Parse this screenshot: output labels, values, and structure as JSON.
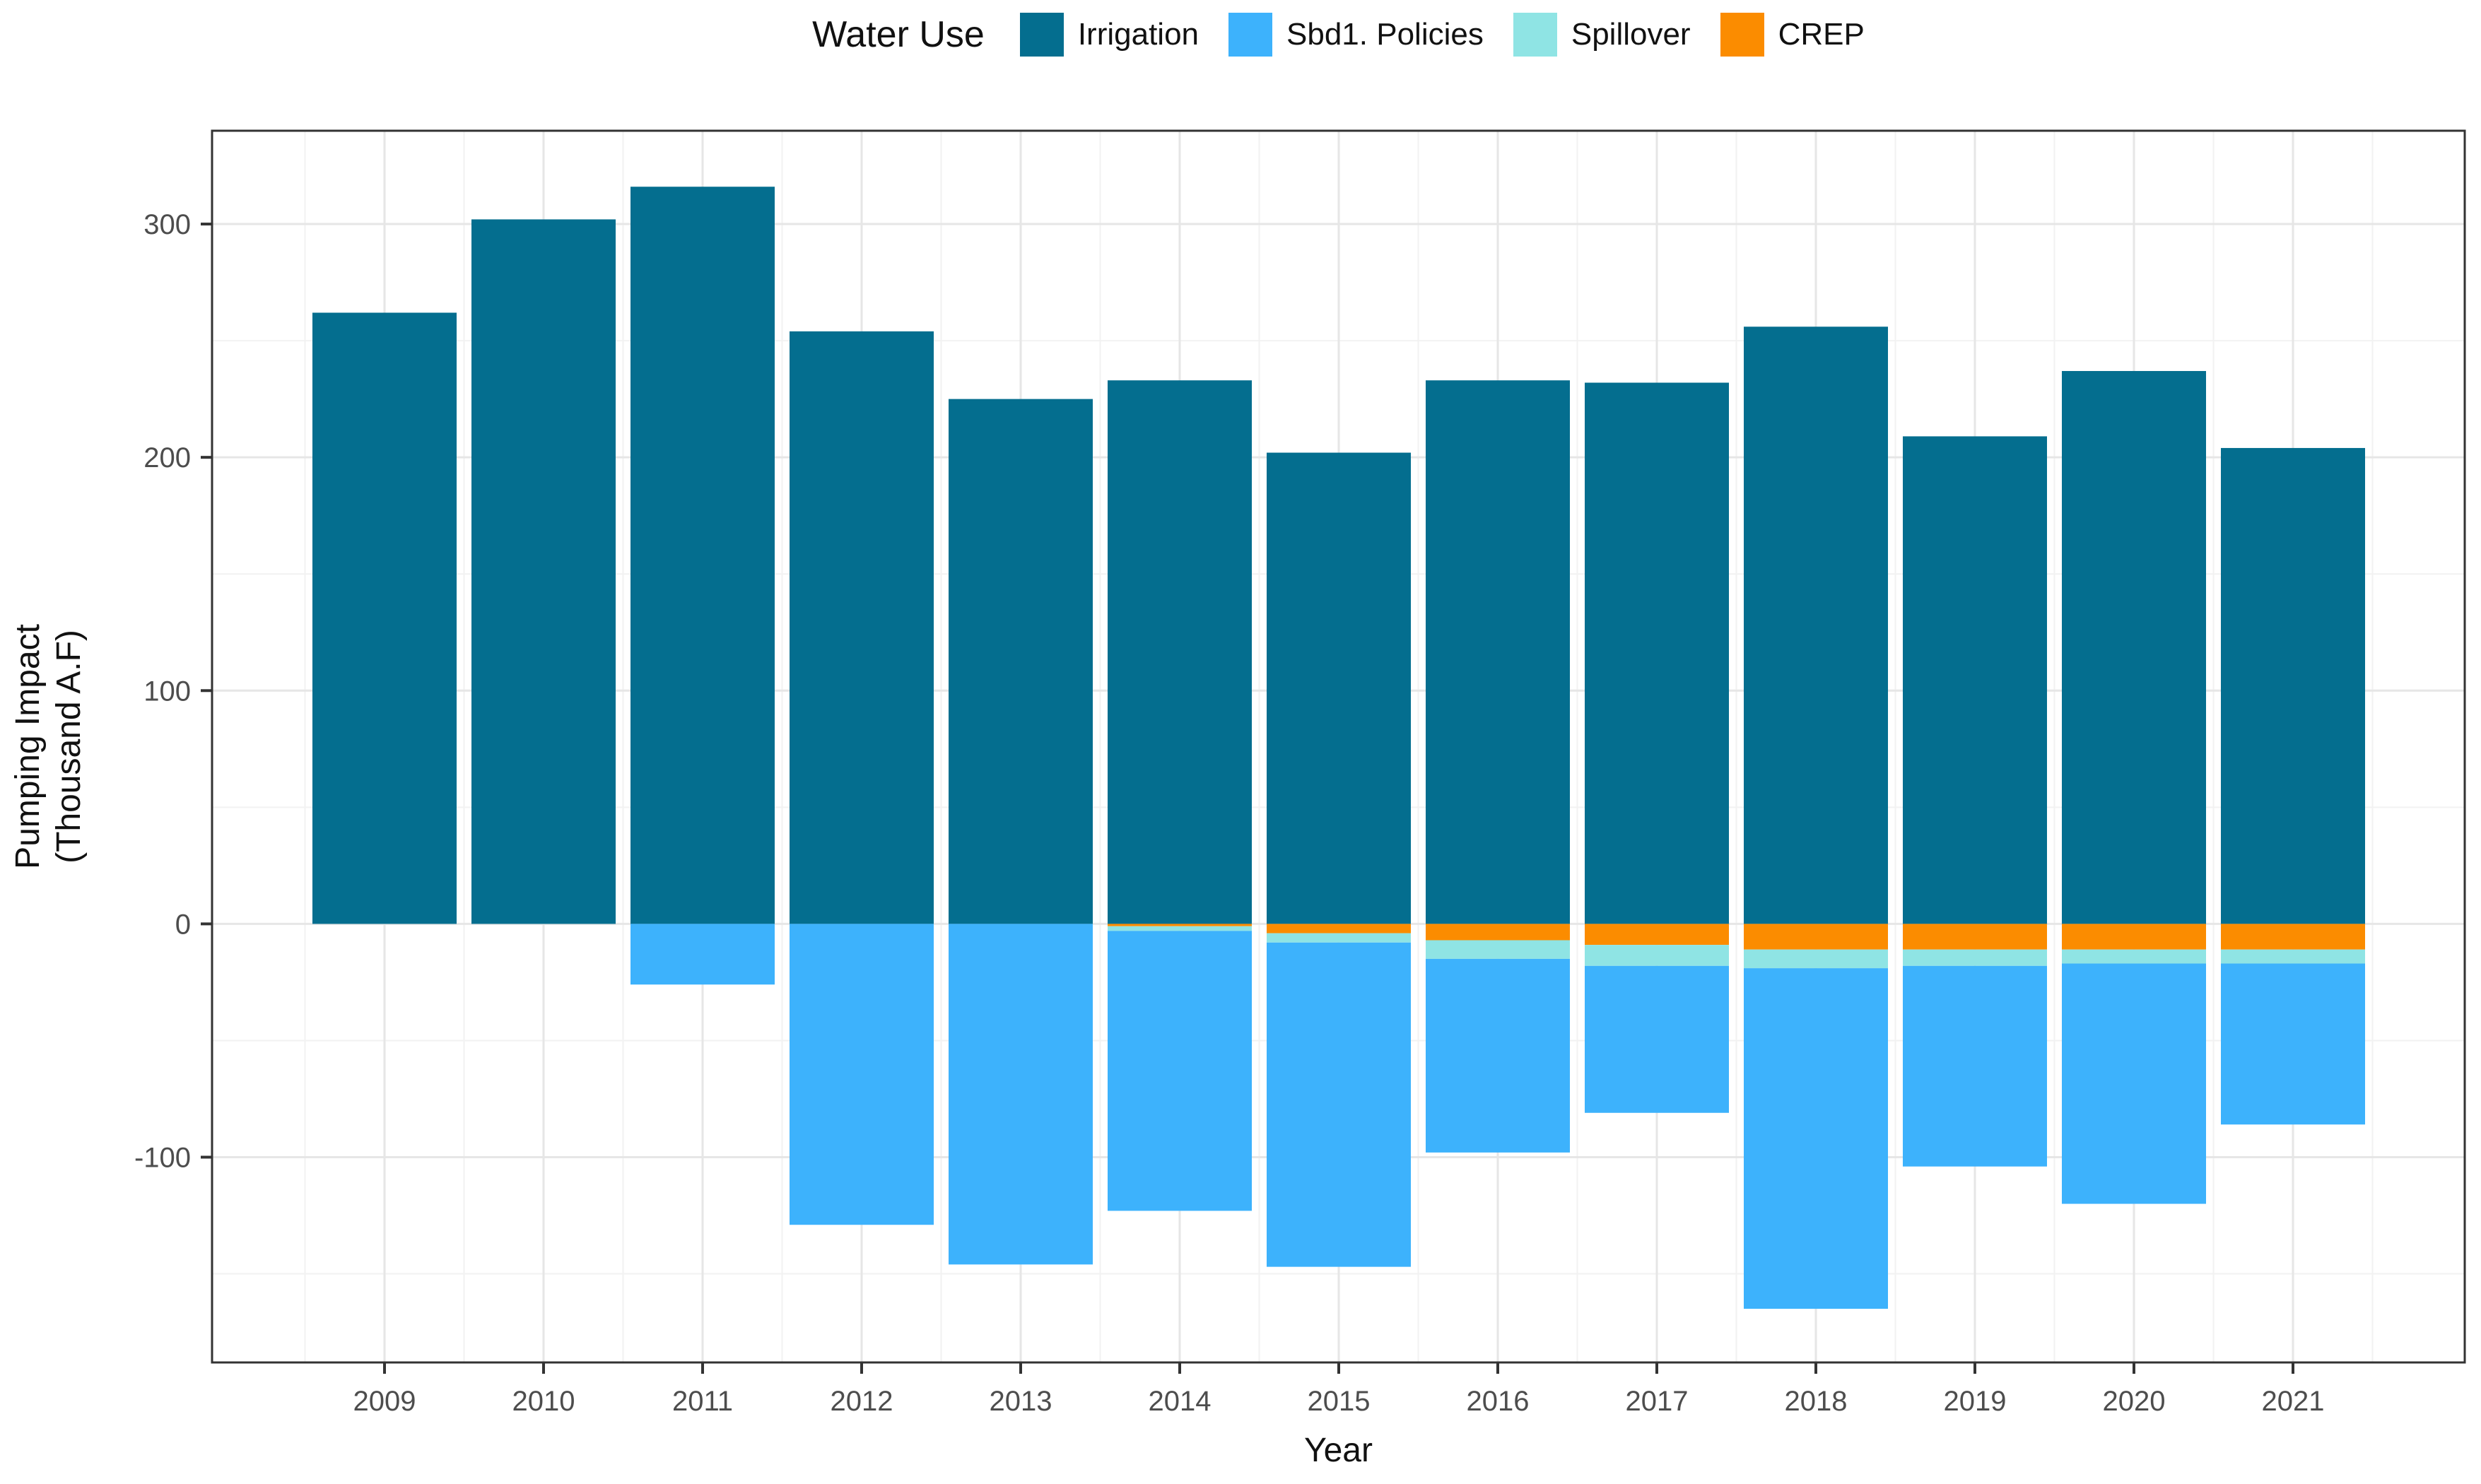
{
  "chart_data": {
    "type": "bar",
    "stacked": true,
    "orientation": "vertical",
    "legend_title": "Water Use",
    "legend_position": "top",
    "xlabel": "Year",
    "ylabel_line1": "Pumping Impact",
    "ylabel_line2": "(Thousand A.F)",
    "categories": [
      "2009",
      "2010",
      "2011",
      "2012",
      "2013",
      "2014",
      "2015",
      "2016",
      "2017",
      "2018",
      "2019",
      "2020",
      "2021"
    ],
    "yticks": [
      300,
      200,
      100,
      0,
      -100
    ],
    "yticks_minor": [
      250,
      150,
      50,
      -50,
      -150
    ],
    "ylim": [
      -188,
      340
    ],
    "grid": true,
    "series": [
      {
        "name": "Irrigation",
        "color": "#046E8F",
        "values": [
          262,
          302,
          316,
          254,
          225,
          233,
          202,
          233,
          232,
          256,
          209,
          237,
          204
        ]
      },
      {
        "name": "Sbd1. Policies",
        "color": "#3DB2FC",
        "values": [
          0,
          0,
          -26,
          -129,
          -146,
          -120,
          -139,
          -83,
          -63,
          -146,
          -86,
          -103,
          -69
        ]
      },
      {
        "name": "Spillover",
        "color": "#8FE4E4",
        "values": [
          0,
          0,
          0,
          0,
          0,
          -2,
          -4,
          -8,
          -9,
          -8,
          -7,
          -6,
          -6
        ]
      },
      {
        "name": "CREP",
        "color": "#FB8C00",
        "values": [
          0,
          0,
          0,
          0,
          0,
          -1,
          -4,
          -7,
          -9,
          -11,
          -11,
          -11,
          -11
        ]
      }
    ],
    "negative_stack_order_from_zero": [
      "CREP",
      "Spillover",
      "Sbd1. Policies"
    ],
    "colors": {
      "panel_background": "#ffffff",
      "grid_major": "#E6E6E6",
      "grid_minor": "#F2F2F2",
      "panel_border": "#333333",
      "tick_label": "#4D4D4D",
      "axis_title": "#111111"
    }
  }
}
